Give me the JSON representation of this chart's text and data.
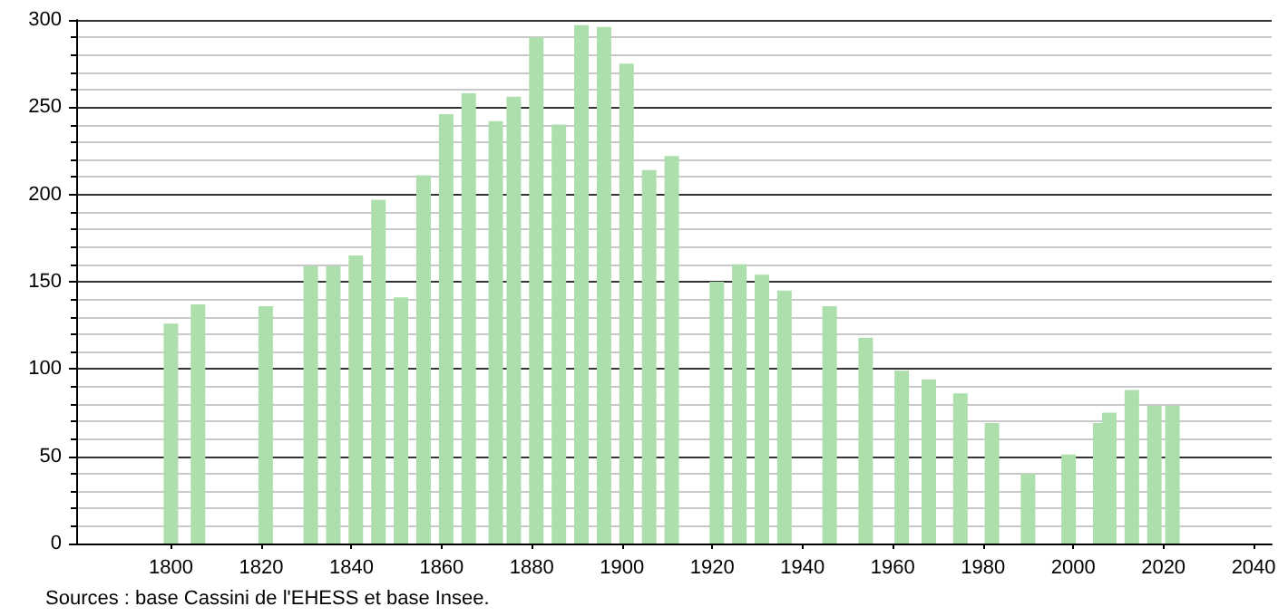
{
  "chart_data": {
    "type": "bar",
    "x": [
      1800,
      1806,
      1821,
      1831,
      1836,
      1841,
      1846,
      1851,
      1856,
      1861,
      1866,
      1872,
      1876,
      1881,
      1886,
      1891,
      1896,
      1901,
      1906,
      1911,
      1921,
      1926,
      1931,
      1936,
      1946,
      1954,
      1962,
      1968,
      1975,
      1982,
      1990,
      1999,
      2006,
      2008,
      2013,
      2018,
      2022
    ],
    "values": [
      126,
      137,
      136,
      159,
      159,
      165,
      197,
      141,
      211,
      246,
      258,
      242,
      256,
      290,
      240,
      297,
      296,
      275,
      214,
      222,
      150,
      160,
      154,
      145,
      136,
      118,
      99,
      94,
      86,
      69,
      40,
      51,
      69,
      75,
      88,
      79,
      79
    ],
    "color": "#addfad",
    "xlim": [
      1779,
      2044
    ],
    "xticks": [
      1800,
      1820,
      1840,
      1860,
      1880,
      1900,
      1920,
      1940,
      1960,
      1980,
      2000,
      2020,
      2040
    ],
    "ylim": [
      0,
      300
    ],
    "yticks": [
      0,
      50,
      100,
      150,
      200,
      250,
      300
    ],
    "grid": "y",
    "annotations": [
      "Sources : base Cassini de l'EHESS et base Insee."
    ]
  }
}
